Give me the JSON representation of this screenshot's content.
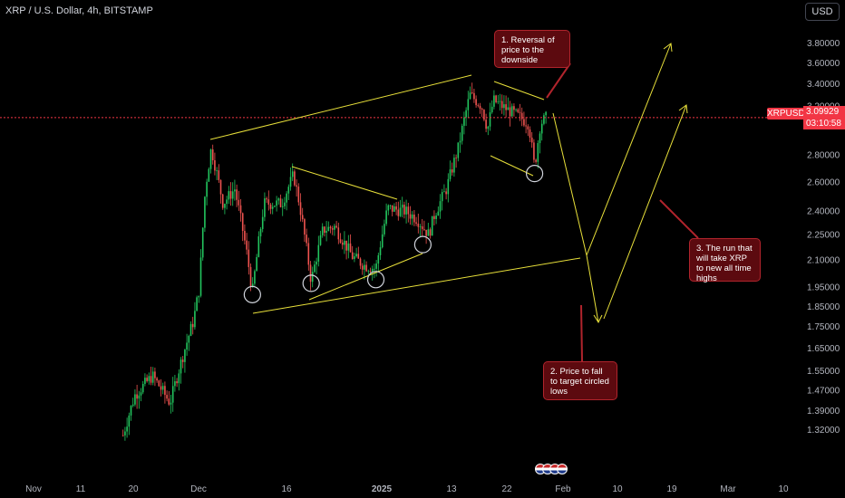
{
  "header": {
    "title": "XRP / U.S. Dollar, 4h, BITSTAMP",
    "currency_button": "USD"
  },
  "price_tag": {
    "symbol": "XRPUSD",
    "last_price": "3.09929",
    "countdown": "03:10:58"
  },
  "notes": [
    {
      "text": "1. Reversal of price to the downside"
    },
    {
      "text": "2. Price to fall to target circled lows"
    },
    {
      "text": "3. The run that will take XRP to new all time highs"
    }
  ],
  "colors": {
    "up": "#22c55e",
    "down": "#ef5350",
    "drawing": "#e8e03a",
    "last_price_line": "#f23645",
    "note_bg": "#5c0a0f"
  },
  "chart_data": {
    "type": "candlestick",
    "symbol": "XRPUSD",
    "timeframe": "4h",
    "y_scale": "log",
    "ylim": [
      1.3,
      3.9
    ],
    "y_ticks": [
      "3.80000",
      "3.60000",
      "3.40000",
      "3.20000",
      "2.80000",
      "2.60000",
      "2.40000",
      "2.25000",
      "2.10000",
      "1.95000",
      "1.85000",
      "1.75000",
      "1.65000",
      "1.55000",
      "1.47000",
      "1.39000",
      "1.32000"
    ],
    "x_ticks": [
      "Nov",
      "11",
      "20",
      "Dec",
      "16",
      "2025",
      "13",
      "22",
      "Feb",
      "10",
      "19",
      "Mar",
      "10"
    ],
    "last_price": 3.09929,
    "price_path": [
      {
        "date": "2024-11-18",
        "price": 1.3
      },
      {
        "date": "2024-11-20",
        "price": 1.45
      },
      {
        "date": "2024-11-23",
        "price": 1.53
      },
      {
        "date": "2024-11-26",
        "price": 1.42
      },
      {
        "date": "2024-11-30",
        "price": 1.78
      },
      {
        "date": "2024-12-01",
        "price": 1.95
      },
      {
        "date": "2024-12-02",
        "price": 2.55
      },
      {
        "date": "2024-12-03",
        "price": 2.85
      },
      {
        "date": "2024-12-05",
        "price": 2.45
      },
      {
        "date": "2024-12-07",
        "price": 2.55
      },
      {
        "date": "2024-12-09",
        "price": 2.15
      },
      {
        "date": "2024-12-10",
        "price": 1.92
      },
      {
        "date": "2024-12-12",
        "price": 2.45
      },
      {
        "date": "2024-12-15",
        "price": 2.45
      },
      {
        "date": "2024-12-17",
        "price": 2.65
      },
      {
        "date": "2024-12-18",
        "price": 2.45
      },
      {
        "date": "2024-12-20",
        "price": 1.98
      },
      {
        "date": "2024-12-22",
        "price": 2.28
      },
      {
        "date": "2024-12-24",
        "price": 2.3
      },
      {
        "date": "2024-12-27",
        "price": 2.12
      },
      {
        "date": "2024-12-29",
        "price": 2.07
      },
      {
        "date": "2024-12-31",
        "price": 2.05
      },
      {
        "date": "2025-01-02",
        "price": 2.42
      },
      {
        "date": "2025-01-05",
        "price": 2.4
      },
      {
        "date": "2025-01-07",
        "price": 2.35
      },
      {
        "date": "2025-01-09",
        "price": 2.25
      },
      {
        "date": "2025-01-10",
        "price": 2.38
      },
      {
        "date": "2025-01-12",
        "price": 2.55
      },
      {
        "date": "2025-01-14",
        "price": 2.85
      },
      {
        "date": "2025-01-16",
        "price": 3.3
      },
      {
        "date": "2025-01-18",
        "price": 3.2
      },
      {
        "date": "2025-01-19",
        "price": 3.0
      },
      {
        "date": "2025-01-20",
        "price": 3.25
      },
      {
        "date": "2025-01-22",
        "price": 3.18
      },
      {
        "date": "2025-01-24",
        "price": 3.12
      },
      {
        "date": "2025-01-26",
        "price": 3.05
      },
      {
        "date": "2025-01-27",
        "price": 2.7
      },
      {
        "date": "2025-01-28",
        "price": 3.05
      },
      {
        "date": "2025-01-29",
        "price": 3.1
      }
    ],
    "circled_lows": [
      {
        "date": "2024-12-10",
        "price": 1.91
      },
      {
        "date": "2024-12-20",
        "price": 1.97
      },
      {
        "date": "2024-12-31",
        "price": 1.99
      },
      {
        "date": "2025-01-08",
        "price": 2.19
      },
      {
        "date": "2025-01-27",
        "price": 2.66
      }
    ]
  }
}
